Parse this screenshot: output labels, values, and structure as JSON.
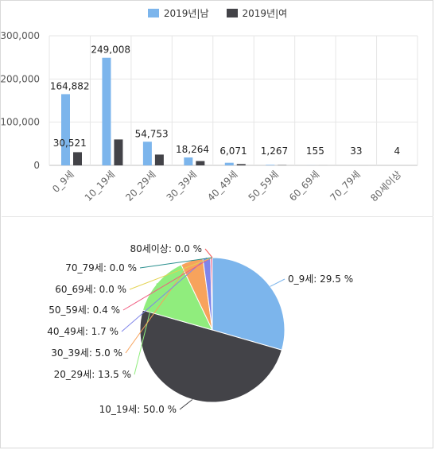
{
  "chart_data": [
    {
      "type": "bar",
      "categories": [
        "0_9세",
        "10_19세",
        "20_29세",
        "30_39세",
        "40_49세",
        "50_59세",
        "60_69세",
        "70_79세",
        "80세이상"
      ],
      "series": [
        {
          "name": "2019년|남",
          "color": "#7cb5ec",
          "values": [
            164882,
            249008,
            54753,
            18264,
            6071,
            1267,
            155,
            33,
            4
          ]
        },
        {
          "name": "2019년|여",
          "color": "#434348",
          "values": [
            30521,
            60000,
            25000,
            10000,
            3000,
            700,
            90,
            20,
            2
          ]
        }
      ],
      "data_labels": [
        "164,882",
        "249,008",
        "54,753",
        "18,264",
        "6,071",
        "1,267",
        "155",
        "33",
        "4"
      ],
      "extra_label": "30,521",
      "yticks": [
        "0",
        "100,000",
        "200,000",
        "300,000"
      ],
      "ylim": [
        0,
        300000
      ],
      "legend": "top-center",
      "grid": true
    },
    {
      "type": "pie",
      "slices": [
        {
          "label": "0_9세: 29.5 %",
          "value": 29.5,
          "color": "#7cb5ec"
        },
        {
          "label": "10_19세: 50.0 %",
          "value": 50.0,
          "color": "#434348"
        },
        {
          "label": "20_29세: 13.5 %",
          "value": 13.5,
          "color": "#90ed7d"
        },
        {
          "label": "30_39세: 5.0 %",
          "value": 5.0,
          "color": "#f7a35c"
        },
        {
          "label": "40_49세: 1.7 %",
          "value": 1.7,
          "color": "#8085e9"
        },
        {
          "label": "50_59세: 0.4 %",
          "value": 0.4,
          "color": "#f15c80"
        },
        {
          "label": "60_69세: 0.0 %",
          "value": 0.0,
          "color": "#e4d354"
        },
        {
          "label": "70_79세: 0.0 %",
          "value": 0.0,
          "color": "#2b908f"
        },
        {
          "label": "80세이상: 0.0 %",
          "value": 0.0,
          "color": "#f45b5b"
        }
      ]
    }
  ]
}
